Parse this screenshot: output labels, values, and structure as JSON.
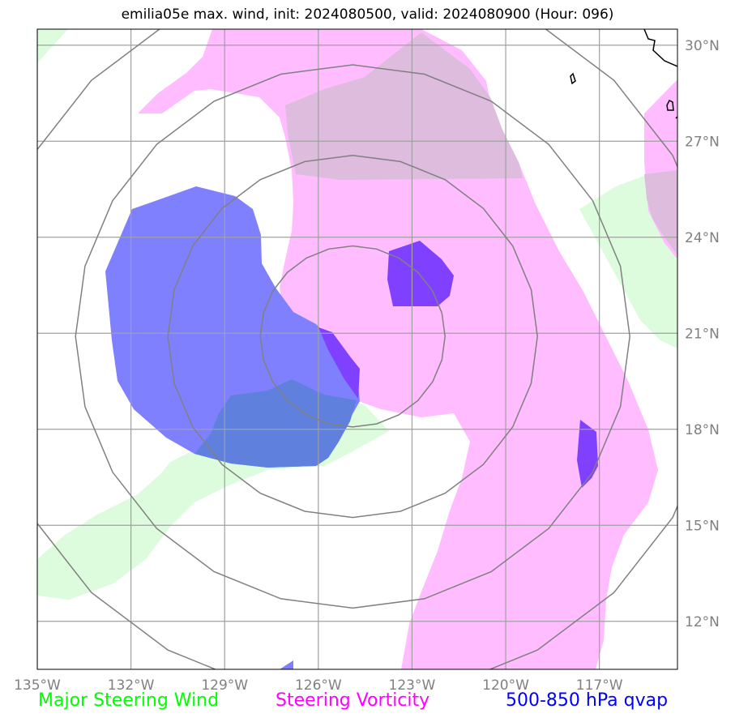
{
  "title": "emilia05e max. wind, init: 2024080500, valid: 2024080900 (Hour: 096)",
  "map": {
    "lon_range": [
      -135,
      -114.5
    ],
    "lat_range": [
      10.5,
      30.5
    ],
    "lon_ticks": [
      {
        "value": -135,
        "label": "135°W"
      },
      {
        "value": -132,
        "label": "132°W"
      },
      {
        "value": -129,
        "label": "129°W"
      },
      {
        "value": -126,
        "label": "126°W"
      },
      {
        "value": -123,
        "label": "123°W"
      },
      {
        "value": -120,
        "label": "120°W"
      },
      {
        "value": -117,
        "label": "117°W"
      }
    ],
    "lat_ticks": [
      {
        "value": 12,
        "label": "12°N"
      },
      {
        "value": 15,
        "label": "15°N"
      },
      {
        "value": 18,
        "label": "18°N"
      },
      {
        "value": 21,
        "label": "21°N"
      },
      {
        "value": 24,
        "label": "24°N"
      },
      {
        "value": 27,
        "label": "27°N"
      },
      {
        "value": 30,
        "label": "30°N"
      }
    ],
    "grid": true,
    "range_rings_center": {
      "lon": -124.9,
      "lat": 20.9
    },
    "colors": {
      "steering_wind": "#ddfcdd",
      "steering_vorticity": "#ffbcff",
      "vorticity_overlap": "#debcde",
      "qvap": "#7f80fe",
      "qvap_dark": "#7f40ff",
      "qvap_overlap": "#5f80dd",
      "grid": "#a0a0a0",
      "rings": "#808080"
    }
  },
  "legend": {
    "wind": {
      "label": "Major Steering Wind",
      "color": "#00ff00"
    },
    "vorticity": {
      "label": "Steering Vorticity",
      "color": "#ff00ff"
    },
    "qvap": {
      "label": "500-850 hPa qvap",
      "color": "#0000ff"
    }
  }
}
